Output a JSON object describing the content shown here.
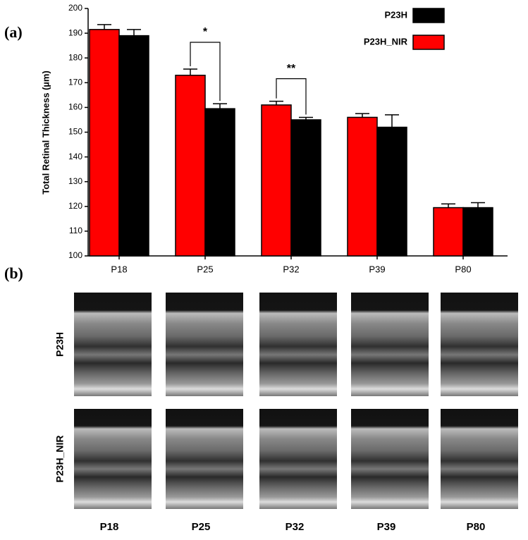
{
  "chart_data": {
    "type": "bar",
    "panel_label": "(a)",
    "y_label": "Total Retinal Thickness (µm)",
    "categories": [
      "P18",
      "P25",
      "P32",
      "P39",
      "P80"
    ],
    "series": [
      {
        "name": "P23H_NIR",
        "color": "#ff0000",
        "values": [
          191.5,
          173,
          161,
          156,
          119.5
        ],
        "errors": [
          2,
          2.5,
          1.5,
          1.5,
          1.5
        ]
      },
      {
        "name": "P23H",
        "color": "#000000",
        "values": [
          189,
          159.5,
          155,
          152,
          119.5
        ],
        "errors": [
          2.5,
          2,
          1,
          5,
          2
        ]
      }
    ],
    "annotations": [
      "*",
      "**"
    ],
    "ylim": [
      100,
      200
    ],
    "yticks": [
      100,
      110,
      120,
      130,
      140,
      150,
      160,
      170,
      180,
      190,
      200
    ],
    "grid": false
  },
  "panel_b": {
    "label": "(b)",
    "rows": [
      "P23H",
      "P23H_NIR"
    ],
    "columns": [
      "P18",
      "P25",
      "P32",
      "P39",
      "P80"
    ]
  }
}
